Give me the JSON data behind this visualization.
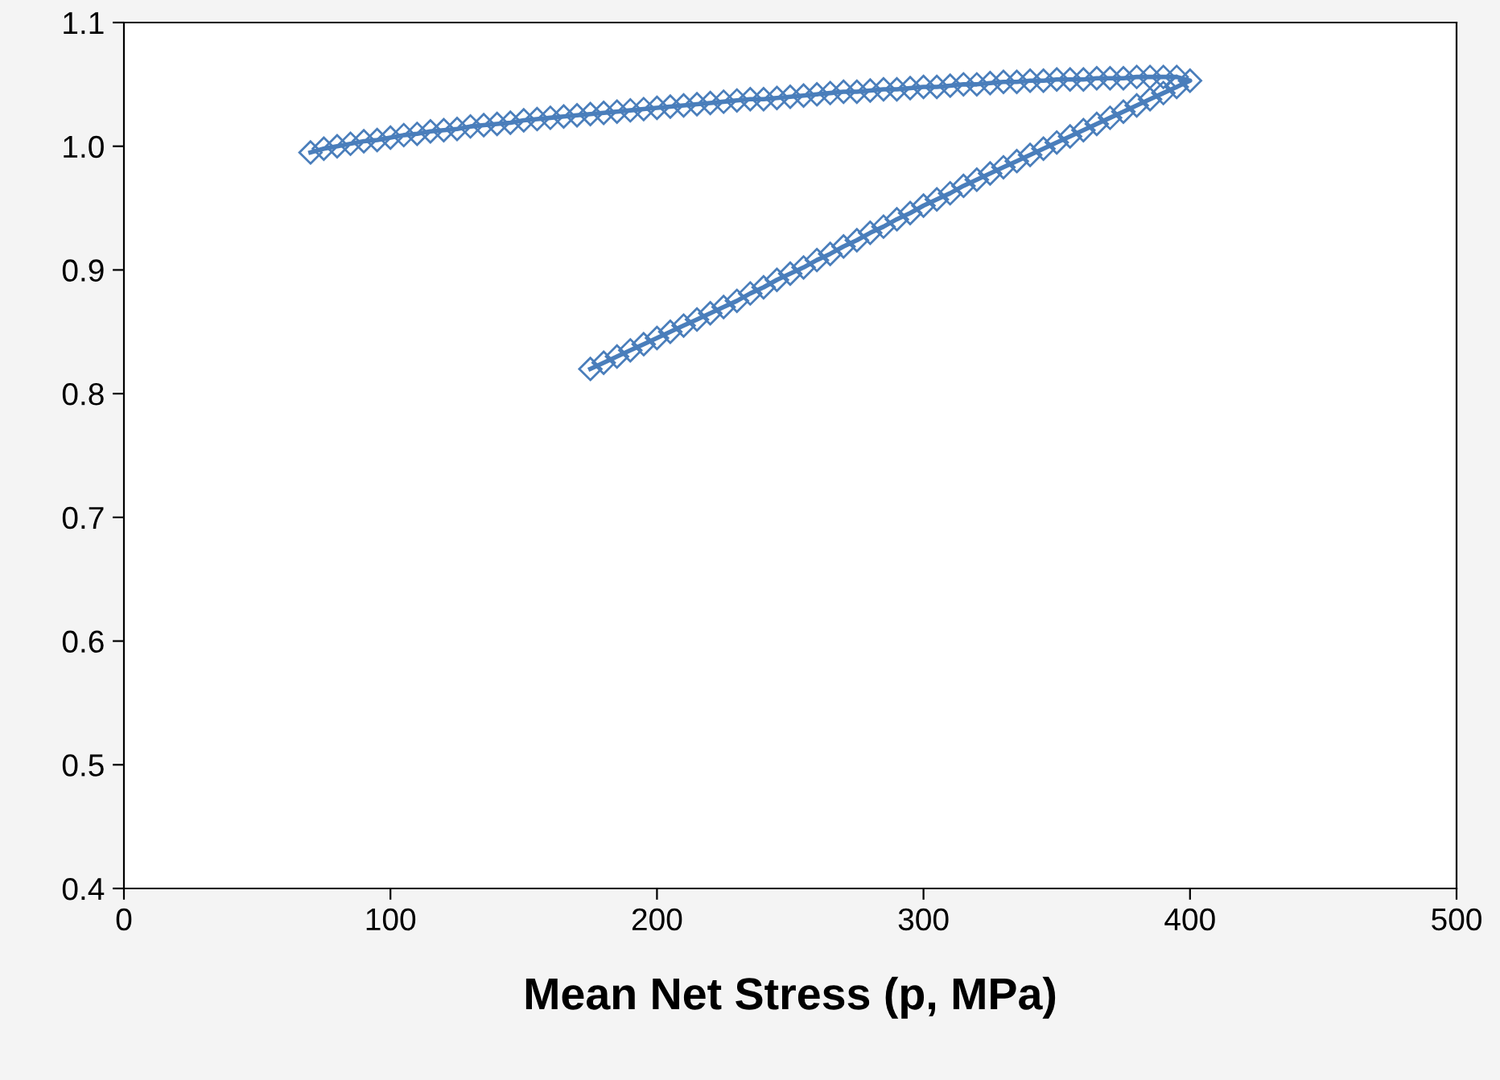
{
  "chart_data": {
    "type": "line",
    "xlabel": "Mean Net Stress (p, MPa)",
    "xlim": [
      0,
      500
    ],
    "xticks": [
      0,
      100,
      200,
      300,
      400,
      500
    ],
    "ylim": [
      0.4,
      1.1
    ],
    "yticks": [
      {
        "value": 0.4,
        "label": "0.4"
      },
      {
        "value": 0.5,
        "label": "0.5"
      },
      {
        "value": 0.6,
        "label": "0.6"
      },
      {
        "value": 0.7,
        "label": "0.7"
      },
      {
        "value": 0.8,
        "label": "0.8"
      },
      {
        "value": 0.9,
        "label": "0.9"
      },
      {
        "value": 1.0,
        "label": "1.0"
      },
      {
        "value": 1.1,
        "label": "1.1"
      }
    ],
    "grid": false,
    "legend": false,
    "marker": "diamond",
    "line_style": "solid",
    "series": [
      {
        "color": "#4a7ebb",
        "x": [
          175,
          180,
          185,
          190,
          195,
          200,
          205,
          210,
          215,
          220,
          225,
          230,
          235,
          240,
          245,
          250,
          255,
          260,
          265,
          270,
          275,
          280,
          285,
          290,
          295,
          300,
          305,
          310,
          315,
          320,
          325,
          330,
          335,
          340,
          345,
          350,
          355,
          360,
          365,
          370,
          375,
          380,
          385,
          390,
          395,
          400,
          395,
          390,
          385,
          380,
          375,
          370,
          365,
          360,
          355,
          350,
          345,
          340,
          335,
          330,
          325,
          320,
          315,
          310,
          305,
          300,
          295,
          290,
          285,
          280,
          275,
          270,
          265,
          260,
          255,
          250,
          245,
          240,
          235,
          230,
          225,
          220,
          215,
          210,
          205,
          200,
          195,
          190,
          185,
          180,
          175,
          170,
          165,
          160,
          155,
          150,
          145,
          140,
          135,
          130,
          125,
          120,
          115,
          110,
          105,
          100,
          95,
          90,
          85,
          80,
          75,
          70
        ],
        "values": [
          0.82,
          0.825,
          0.83,
          0.835,
          0.84,
          0.845,
          0.85,
          0.855,
          0.86,
          0.865,
          0.87,
          0.875,
          0.881,
          0.886,
          0.892,
          0.897,
          0.902,
          0.908,
          0.913,
          0.919,
          0.924,
          0.93,
          0.935,
          0.941,
          0.946,
          0.952,
          0.957,
          0.962,
          0.968,
          0.973,
          0.978,
          0.983,
          0.988,
          0.993,
          0.998,
          1.003,
          1.008,
          1.013,
          1.018,
          1.023,
          1.028,
          1.033,
          1.038,
          1.043,
          1.048,
          1.053,
          1.056,
          1.056,
          1.056,
          1.056,
          1.055,
          1.055,
          1.055,
          1.054,
          1.054,
          1.054,
          1.053,
          1.053,
          1.052,
          1.052,
          1.051,
          1.05,
          1.05,
          1.049,
          1.048,
          1.048,
          1.047,
          1.046,
          1.046,
          1.045,
          1.044,
          1.044,
          1.043,
          1.042,
          1.041,
          1.04,
          1.039,
          1.038,
          1.038,
          1.037,
          1.036,
          1.035,
          1.034,
          1.033,
          1.032,
          1.031,
          1.03,
          1.029,
          1.028,
          1.027,
          1.026,
          1.025,
          1.024,
          1.023,
          1.022,
          1.021,
          1.019,
          1.018,
          1.017,
          1.016,
          1.014,
          1.013,
          1.012,
          1.01,
          1.009,
          1.007,
          1.005,
          1.004,
          1.002,
          1.0,
          0.998,
          0.995
        ]
      }
    ]
  }
}
